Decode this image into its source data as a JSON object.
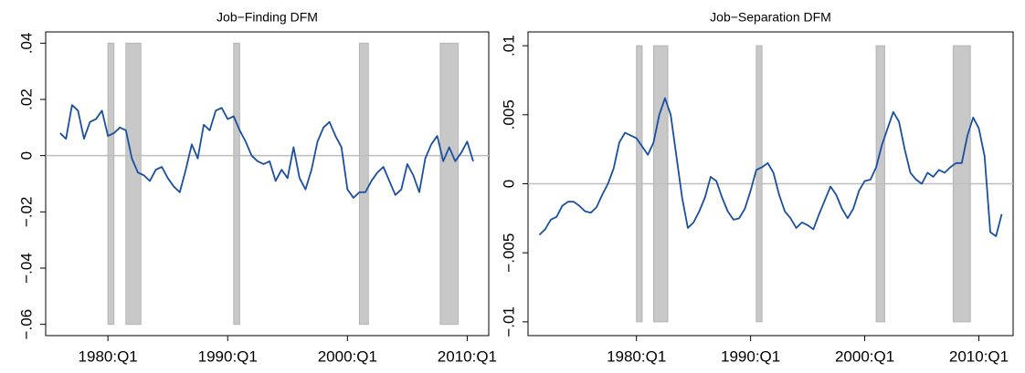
{
  "chart_data": [
    {
      "type": "line",
      "title": "Job−Finding DFM",
      "x": [
        1976,
        1976.5,
        1977,
        1977.5,
        1978,
        1978.5,
        1979,
        1979.5,
        1980,
        1980.5,
        1981,
        1981.5,
        1982,
        1982.5,
        1983,
        1983.5,
        1984,
        1984.5,
        1985,
        1985.5,
        1986,
        1986.5,
        1987,
        1987.5,
        1988,
        1988.5,
        1989,
        1989.5,
        1990,
        1990.5,
        1991,
        1991.5,
        1992,
        1992.5,
        1993,
        1993.5,
        1994,
        1994.5,
        1995,
        1995.5,
        1996,
        1996.5,
        1997,
        1997.5,
        1998,
        1998.5,
        1999,
        1999.5,
        2000,
        2000.5,
        2001,
        2001.5,
        2002,
        2002.5,
        2003,
        2003.5,
        2004,
        2004.5,
        2005,
        2005.5,
        2006,
        2006.5,
        2007,
        2007.5,
        2008,
        2008.5,
        2009,
        2009.5,
        2010,
        2010.5
      ],
      "series": [
        {
          "color": "#1a4fa0",
          "values": [
            0.008,
            0.006,
            0.018,
            0.016,
            0.006,
            0.012,
            0.013,
            0.016,
            0.007,
            0.008,
            0.01,
            0.009,
            -0.001,
            -0.006,
            -0.007,
            -0.009,
            -0.005,
            -0.004,
            -0.008,
            -0.011,
            -0.013,
            -0.005,
            0.004,
            -0.001,
            0.011,
            0.009,
            0.016,
            0.017,
            0.013,
            0.014,
            0.009,
            0.005,
            0,
            -0.002,
            -0.003,
            -0.002,
            -0.009,
            -0.005,
            -0.008,
            0.003,
            -0.008,
            -0.012,
            -0.005,
            0.005,
            0.01,
            0.012,
            0.007,
            0.003,
            -0.012,
            -0.015,
            -0.013,
            -0.013,
            -0.009,
            -0.006,
            -0.004,
            -0.009,
            -0.014,
            -0.012,
            -0.003,
            -0.007,
            -0.013,
            -0.001,
            0.004,
            0.007,
            -0.002,
            0.003,
            -0.002,
            0.001,
            0.005,
            -0.002
          ]
        }
      ],
      "shaded_periods": [
        [
          1980,
          1980.5
        ],
        [
          1981.5,
          1982.75
        ],
        [
          1990.5,
          1991
        ],
        [
          2001,
          2001.75
        ],
        [
          2007.75,
          2009.25
        ]
      ],
      "hline": 0,
      "xlim": [
        1974.8,
        2011.8
      ],
      "xticks": [
        {
          "value": 1980,
          "label": "1980:Q1"
        },
        {
          "value": 1990,
          "label": "1990:Q1"
        },
        {
          "value": 2000,
          "label": "2000:Q1"
        },
        {
          "value": 2010,
          "label": "2010:Q1"
        }
      ],
      "ylim": [
        -0.064,
        0.044
      ],
      "yticks": [
        {
          "value": 0.04,
          "label": ".04"
        },
        {
          "value": 0.02,
          "label": ".02"
        },
        0,
        {
          "value": -0.02,
          "label": "−.02"
        },
        {
          "value": -0.04,
          "label": "−.04"
        },
        {
          "value": -0.06,
          "label": "−.06"
        }
      ],
      "grid": false
    },
    {
      "type": "line",
      "title": "Job−Separation DFM",
      "x": [
        1971.5,
        1972,
        1972.5,
        1973,
        1973.5,
        1974,
        1974.5,
        1975,
        1975.5,
        1976,
        1976.5,
        1977,
        1977.5,
        1978,
        1978.5,
        1979,
        1979.5,
        1980,
        1980.5,
        1981,
        1981.5,
        1982,
        1982.5,
        1983,
        1983.5,
        1984,
        1984.5,
        1985,
        1985.5,
        1986,
        1986.5,
        1987,
        1987.5,
        1988,
        1988.5,
        1989,
        1989.5,
        1990,
        1990.5,
        1991,
        1991.5,
        1992,
        1992.5,
        1993,
        1993.5,
        1994,
        1994.5,
        1995,
        1995.5,
        1996,
        1996.5,
        1997,
        1997.5,
        1998,
        1998.5,
        1999,
        1999.5,
        2000,
        2000.5,
        2001,
        2001.5,
        2002,
        2002.5,
        2003,
        2003.5,
        2004,
        2004.5,
        2005,
        2005.5,
        2006,
        2006.5,
        2007,
        2007.5,
        2008,
        2008.5,
        2009,
        2009.5,
        2010,
        2010.5,
        2011,
        2011.5,
        2012
      ],
      "series": [
        {
          "color": "#1a4fa0",
          "values": [
            -0.0037,
            -0.0033,
            -0.0026,
            -0.0024,
            -0.0016,
            -0.0013,
            -0.0013,
            -0.0016,
            -0.002,
            -0.0021,
            -0.0017,
            -0.0008,
            0,
            0.0011,
            0.003,
            0.0037,
            0.0035,
            0.0033,
            0.0027,
            0.0021,
            0.003,
            0.005,
            0.0062,
            0.005,
            0.002,
            -0.001,
            -0.0032,
            -0.0028,
            -0.002,
            -0.001,
            0.0005,
            0.0002,
            -0.001,
            -0.002,
            -0.0026,
            -0.0025,
            -0.0018,
            -0.0005,
            0.001,
            0.0012,
            0.0015,
            0.0008,
            -0.0008,
            -0.002,
            -0.0025,
            -0.0032,
            -0.0028,
            -0.003,
            -0.0033,
            -0.0022,
            -0.0012,
            -0.0002,
            -0.0008,
            -0.0018,
            -0.0025,
            -0.0018,
            -0.0005,
            0.0002,
            0.0003,
            0.0012,
            0.0028,
            0.004,
            0.0052,
            0.0045,
            0.0025,
            0.0008,
            0.0003,
            0,
            0.0008,
            0.0005,
            0.001,
            0.0008,
            0.0012,
            0.0015,
            0.0015,
            0.0035,
            0.0048,
            0.004,
            0.002,
            -0.0035,
            -0.0038,
            -0.0022
          ]
        }
      ],
      "shaded_periods": [
        [
          1980,
          1980.5
        ],
        [
          1981.5,
          1982.75
        ],
        [
          1990.5,
          1991
        ],
        [
          2001,
          2001.75
        ],
        [
          2007.75,
          2009.25
        ]
      ],
      "hline": 0,
      "xlim": [
        1970.5,
        2013
      ],
      "xticks": [
        {
          "value": 1980,
          "label": "1980:Q1"
        },
        {
          "value": 1990,
          "label": "1990:Q1"
        },
        {
          "value": 2000,
          "label": "2000:Q1"
        },
        {
          "value": 2010,
          "label": "2010:Q1"
        }
      ],
      "ylim": [
        -0.011,
        0.011
      ],
      "yticks": [
        {
          "value": 0.01,
          "label": ".01"
        },
        {
          "value": 0.005,
          "label": ".005"
        },
        0,
        {
          "value": -0.005,
          "label": "−.005"
        },
        {
          "value": -0.01,
          "label": "−.01"
        }
      ],
      "grid": false
    }
  ]
}
